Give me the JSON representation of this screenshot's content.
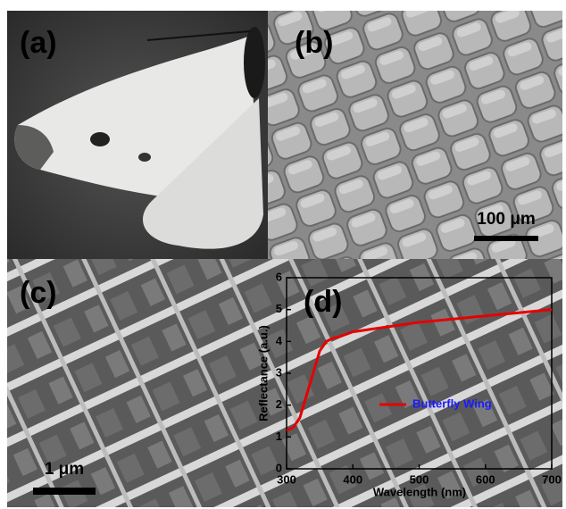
{
  "panels": [
    {
      "label": "(a)"
    },
    {
      "label": "(b)",
      "scale_bar": "100 μm"
    },
    {
      "label": "(c)",
      "scale_bar": "1 μm"
    }
  ],
  "chart_data": {
    "type": "line",
    "panel_label": "(d)",
    "xlabel": "Wavelength (nm)",
    "ylabel": "Reflectance (a.u.)",
    "x": [
      300,
      310,
      320,
      330,
      340,
      350,
      360,
      370,
      380,
      400,
      450,
      500,
      550,
      600,
      650,
      700
    ],
    "series": [
      {
        "name": "Butterfly Wing",
        "color": "#e60000",
        "values": [
          1.2,
          1.3,
          1.6,
          2.3,
          3.0,
          3.7,
          4.0,
          4.1,
          4.15,
          4.3,
          4.45,
          4.6,
          4.7,
          4.8,
          4.9,
          5.0
        ]
      }
    ],
    "legend_text_color": "#1a1aff",
    "xlim": [
      300,
      700
    ],
    "ylim": [
      0,
      6
    ],
    "xticks": [
      300,
      400,
      500,
      600,
      700
    ],
    "yticks": [
      0,
      1,
      2,
      3,
      4,
      5,
      6
    ]
  }
}
